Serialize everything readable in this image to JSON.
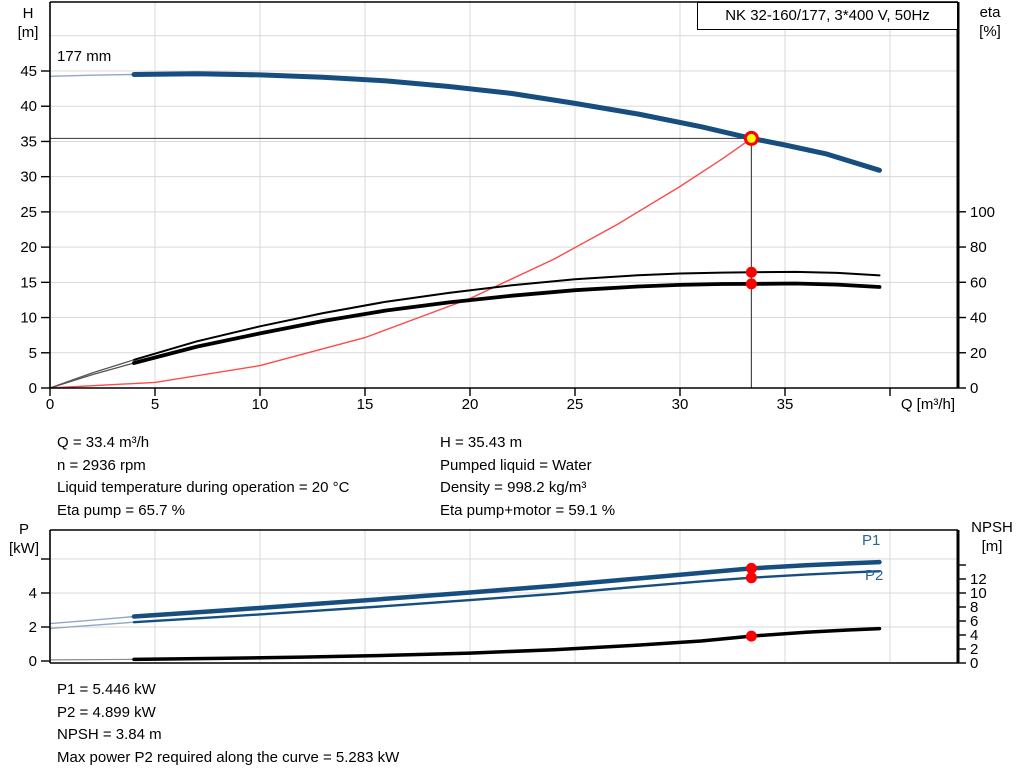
{
  "title_box": {
    "label": "NK 32-160/177, 3*400 V, 50Hz"
  },
  "colors": {
    "curve_blue": "#174e80",
    "curve_blue_light": "#8fa8c4",
    "label_blue": "#2d6496",
    "system_red": "#ff4a4a",
    "marker_red": "#ff0000",
    "duty_yellow": "#ffff00",
    "grid": "#d9d9d9",
    "axis": "#000000",
    "crosshair": "#4a4a4a",
    "lead_dark": "#555555",
    "lead_gray": "#888888"
  },
  "top_chart": {
    "impeller_label": "177 mm",
    "y_left_title": "H",
    "y_left_unit": "[m]",
    "y_right_title": "eta",
    "y_right_unit": "[%]",
    "x_title": "Q [m³/h]"
  },
  "bottom_chart": {
    "y_left_title": "P",
    "y_left_unit": "[kW]",
    "y_right_title": "NPSH",
    "y_right_unit": "[m]",
    "p1_label": "P1",
    "p2_label": "P2"
  },
  "info_top": {
    "col1": [
      "Q = 33.4 m³/h",
      "n = 2936 rpm",
      "Liquid temperature during operation = 20 °C",
      "Eta pump = 65.7 %"
    ],
    "col2": [
      "H = 35.43 m",
      "Pumped liquid = Water",
      "Density = 998.2 kg/m³",
      "Eta pump+motor = 59.1 %"
    ]
  },
  "info_bottom": {
    "lines": [
      "P1 = 5.446 kW",
      "P2 = 4.899 kW",
      "NPSH = 3.84 m",
      "Max power P2 required along the curve = 5.283 kW"
    ]
  },
  "chart_data": [
    {
      "id": "head-efficiency-chart",
      "type": "line",
      "title": "NK 32-160/177, 3*400 V, 50Hz",
      "xlabel": "Q [m³/h]",
      "x_range": [
        0,
        43.2
      ],
      "y_left": {
        "label": "H [m]",
        "range": [
          0,
          54.8
        ],
        "ticks": [
          {
            "v": 0,
            "t": "0"
          },
          {
            "v": 5,
            "t": "5"
          },
          {
            "v": 10,
            "t": "10"
          },
          {
            "v": 15,
            "t": "15"
          },
          {
            "v": 20,
            "t": "20"
          },
          {
            "v": 25,
            "t": "25"
          },
          {
            "v": 30,
            "t": "30"
          },
          {
            "v": 35,
            "t": "35"
          },
          {
            "v": 40,
            "t": "40"
          },
          {
            "v": 45,
            "t": "45"
          }
        ],
        "grid": [
          5,
          10,
          15,
          20,
          25,
          30,
          35,
          40,
          45,
          50
        ]
      },
      "y_right": {
        "label": "eta [%]",
        "range": [
          0,
          100
        ],
        "ticks": [
          {
            "v": 0,
            "t": "0"
          },
          {
            "v": 20,
            "t": "20"
          },
          {
            "v": 40,
            "t": "40"
          },
          {
            "v": 60,
            "t": "60"
          },
          {
            "v": 80,
            "t": "80"
          },
          {
            "v": 100,
            "t": "100"
          }
        ]
      },
      "x_ticks": [
        {
          "v": 0,
          "t": "0"
        },
        {
          "v": 5,
          "t": "5"
        },
        {
          "v": 10,
          "t": "10"
        },
        {
          "v": 15,
          "t": "15"
        },
        {
          "v": 20,
          "t": "20"
        },
        {
          "v": 25,
          "t": "25"
        },
        {
          "v": 30,
          "t": "30"
        },
        {
          "v": 35,
          "t": "35"
        },
        {
          "v": 40,
          "t": ""
        }
      ],
      "x_grid": [
        5,
        10,
        15,
        20,
        25,
        30,
        35,
        40
      ],
      "duty_point": {
        "q": 33.4,
        "h": 35.43
      },
      "series": [
        {
          "name": "head-curve-lead",
          "axis": "H",
          "style": "leadBlue",
          "points": [
            [
              0,
              44.25
            ],
            [
              2,
              44.4
            ],
            [
              4,
              44.5
            ]
          ]
        },
        {
          "name": "head-curve",
          "axis": "H",
          "style": "thickBlue",
          "points": [
            [
              4,
              44.5
            ],
            [
              7,
              44.6
            ],
            [
              10,
              44.45
            ],
            [
              13,
              44.1
            ],
            [
              16,
              43.6
            ],
            [
              19,
              42.8
            ],
            [
              22,
              41.8
            ],
            [
              25,
              40.4
            ],
            [
              28,
              38.9
            ],
            [
              31,
              37.1
            ],
            [
              33.4,
              35.43
            ],
            [
              35,
              34.5
            ],
            [
              37,
              33.2
            ],
            [
              39.5,
              30.9
            ]
          ]
        },
        {
          "name": "system-curve",
          "axis": "H",
          "style": "thinRed",
          "points": [
            [
              0,
              0
            ],
            [
              5,
              0.79
            ],
            [
              10,
              3.18
            ],
            [
              15,
              7.15
            ],
            [
              20,
              12.7
            ],
            [
              24,
              18.3
            ],
            [
              27,
              23.2
            ],
            [
              30,
              28.6
            ],
            [
              32,
              32.5
            ],
            [
              33.4,
              35.43
            ]
          ]
        },
        {
          "name": "eta-pump-curve-lead",
          "axis": "eta",
          "style": "leadDark",
          "points": [
            [
              0,
              0
            ],
            [
              2,
              8.5
            ],
            [
              4,
              16
            ]
          ]
        },
        {
          "name": "eta-pump-curve",
          "axis": "eta",
          "style": "thinBlack",
          "points": [
            [
              4,
              16
            ],
            [
              7,
              26.5
            ],
            [
              10,
              35
            ],
            [
              13,
              42.5
            ],
            [
              16,
              49
            ],
            [
              19,
              54
            ],
            [
              22,
              58.3
            ],
            [
              25,
              61.7
            ],
            [
              28,
              64
            ],
            [
              30,
              65
            ],
            [
              32,
              65.5
            ],
            [
              33.4,
              65.7
            ],
            [
              35.5,
              65.9
            ],
            [
              37.5,
              65.3
            ],
            [
              39.5,
              63.9
            ]
          ]
        },
        {
          "name": "eta-pump-motor-curve-lead",
          "axis": "eta",
          "style": "leadDark",
          "points": [
            [
              0,
              0
            ],
            [
              2,
              7.5
            ],
            [
              4,
              14.2
            ]
          ]
        },
        {
          "name": "eta-pump-motor-curve",
          "axis": "eta",
          "style": "thickBlack",
          "points": [
            [
              4,
              14.2
            ],
            [
              7,
              23.5
            ],
            [
              10,
              31
            ],
            [
              13,
              38
            ],
            [
              16,
              44
            ],
            [
              19,
              48.6
            ],
            [
              22,
              52.4
            ],
            [
              25,
              55.5
            ],
            [
              28,
              57.6
            ],
            [
              30,
              58.5
            ],
            [
              32,
              59
            ],
            [
              33.4,
              59.1
            ],
            [
              35.5,
              59.3
            ],
            [
              37.5,
              58.7
            ],
            [
              39.5,
              57.3
            ]
          ]
        }
      ],
      "markers": [
        {
          "name": "duty-point",
          "q": 33.4,
          "axis": "H",
          "v": 35.43,
          "kind": "duty"
        },
        {
          "name": "eta-pump-operating-dot",
          "q": 33.4,
          "axis": "eta",
          "v": 65.7,
          "kind": "dot"
        },
        {
          "name": "eta-pump-motor-operating-dot",
          "q": 33.4,
          "axis": "eta",
          "v": 59.1,
          "kind": "dot"
        }
      ]
    },
    {
      "id": "power-npsh-chart",
      "type": "line",
      "xlabel": "",
      "x_range": [
        0,
        43.2
      ],
      "y_left": {
        "label": "P [kW]",
        "range": [
          0,
          7.7
        ],
        "ticks": [
          {
            "v": 0,
            "t": "0"
          },
          {
            "v": 2,
            "t": "2"
          },
          {
            "v": 4,
            "t": "4"
          },
          {
            "v": 6,
            "t": ""
          }
        ],
        "grid": [
          2,
          4,
          6
        ]
      },
      "y_right": {
        "label": "NPSH [m]",
        "range": [
          0,
          19
        ],
        "ticks": [
          {
            "v": 0,
            "t": "0"
          },
          {
            "v": 2,
            "t": "2"
          },
          {
            "v": 4,
            "t": "4"
          },
          {
            "v": 6,
            "t": "6"
          },
          {
            "v": 8,
            "t": "8"
          },
          {
            "v": 10,
            "t": "10"
          },
          {
            "v": 12,
            "t": "12"
          },
          {
            "v": 14,
            "t": ""
          }
        ]
      },
      "x_ticks": [],
      "x_grid": [
        5,
        10,
        15,
        20,
        25,
        30,
        35,
        40
      ],
      "series": [
        {
          "name": "p1-curve-lead",
          "axis": "P",
          "style": "leadBlue",
          "points": [
            [
              0,
              2.2
            ],
            [
              2,
              2.4
            ],
            [
              4,
              2.62
            ]
          ]
        },
        {
          "name": "p1-curve",
          "axis": "P",
          "style": "thickBlue2",
          "points": [
            [
              4,
              2.62
            ],
            [
              8,
              2.95
            ],
            [
              12,
              3.3
            ],
            [
              16,
              3.66
            ],
            [
              20,
              4.03
            ],
            [
              24,
              4.42
            ],
            [
              28,
              4.85
            ],
            [
              31,
              5.18
            ],
            [
              33.4,
              5.446
            ],
            [
              36,
              5.63
            ],
            [
              38,
              5.74
            ],
            [
              39.5,
              5.82
            ]
          ]
        },
        {
          "name": "p2-curve-lead",
          "axis": "P",
          "style": "leadBlue",
          "points": [
            [
              0,
              1.92
            ],
            [
              2,
              2.1
            ],
            [
              4,
              2.28
            ]
          ]
        },
        {
          "name": "p2-curve",
          "axis": "P",
          "style": "mediumBlue",
          "points": [
            [
              4,
              2.28
            ],
            [
              8,
              2.58
            ],
            [
              12,
              2.9
            ],
            [
              16,
              3.23
            ],
            [
              20,
              3.58
            ],
            [
              24,
              3.95
            ],
            [
              28,
              4.37
            ],
            [
              31,
              4.68
            ],
            [
              33.4,
              4.899
            ],
            [
              36,
              5.08
            ],
            [
              38,
              5.2
            ],
            [
              39.5,
              5.28
            ]
          ]
        },
        {
          "name": "npsh-curve-lead",
          "axis": "NPSH",
          "style": "leadGray",
          "points": [
            [
              0,
              0.45
            ],
            [
              4,
              0.52
            ]
          ]
        },
        {
          "name": "npsh-curve",
          "axis": "NPSH",
          "style": "thickBlack2",
          "points": [
            [
              4,
              0.52
            ],
            [
              8,
              0.66
            ],
            [
              12,
              0.84
            ],
            [
              16,
              1.08
            ],
            [
              20,
              1.42
            ],
            [
              24,
              1.9
            ],
            [
              28,
              2.55
            ],
            [
              31,
              3.15
            ],
            [
              33.4,
              3.84
            ],
            [
              36,
              4.4
            ],
            [
              38,
              4.72
            ],
            [
              39.5,
              4.92
            ]
          ]
        }
      ],
      "markers": [
        {
          "name": "p1-operating-dot",
          "q": 33.4,
          "axis": "P",
          "v": 5.446,
          "kind": "dot"
        },
        {
          "name": "p2-operating-dot",
          "q": 33.4,
          "axis": "P",
          "v": 4.899,
          "kind": "dot"
        },
        {
          "name": "npsh-operating-dot",
          "q": 33.4,
          "axis": "NPSH",
          "v": 3.84,
          "kind": "dot"
        }
      ]
    }
  ]
}
